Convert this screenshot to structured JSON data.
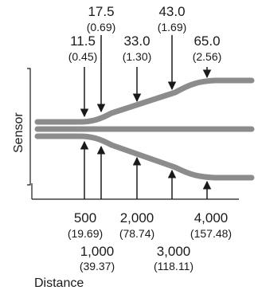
{
  "axis": {
    "y_label": "Sensor",
    "x_label": "Distance"
  },
  "top_labels": [
    {
      "id": "t1",
      "main": "11.5",
      "sub": "(0.45)"
    },
    {
      "id": "t2",
      "main": "17.5",
      "sub": "(0.69)"
    },
    {
      "id": "t3",
      "main": "33.0",
      "sub": "(1.30)"
    },
    {
      "id": "t4",
      "main": "43.0",
      "sub": "(1.69)"
    },
    {
      "id": "t5",
      "main": "65.0",
      "sub": "(2.56)"
    }
  ],
  "bottom_labels": [
    {
      "id": "b1",
      "main": "500",
      "sub": "(19.69)"
    },
    {
      "id": "b2",
      "main": "1,000",
      "sub": "(39.37)"
    },
    {
      "id": "b3",
      "main": "2,000",
      "sub": "(78.74)"
    },
    {
      "id": "b4",
      "main": "3,000",
      "sub": "(118.11)"
    },
    {
      "id": "b5",
      "main": "4,000",
      "sub": "(157.48)"
    }
  ],
  "colors": {
    "beam": "#8c8c8c",
    "ink": "#1a1a1a"
  }
}
